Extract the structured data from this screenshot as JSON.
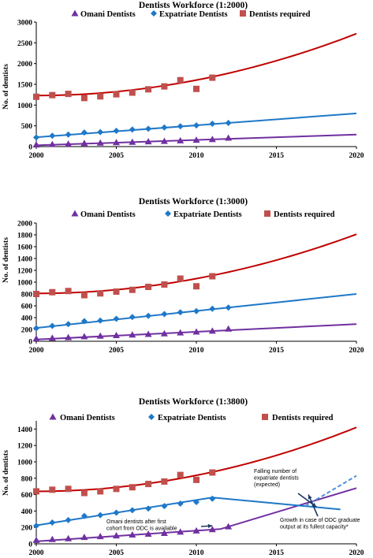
{
  "colors": {
    "omani": "#7030A0",
    "expatriate": "#1F78C8",
    "required": "#C0504D",
    "required_trend": "#C00000",
    "axis": "#000000"
  },
  "chart_data": [
    {
      "type": "scatter",
      "title": "Dentists Workforce (1:2000)",
      "ylabel": "No. of dentists",
      "xlim": [
        2000,
        2020
      ],
      "ylim": [
        0,
        3000
      ],
      "xticks": [
        2000,
        2005,
        2010,
        2015,
        2020
      ],
      "yticks": [
        0,
        500,
        1000,
        1500,
        2000,
        2500,
        3000
      ],
      "legend": {
        "position": "top"
      },
      "series": [
        {
          "name": "Omani Dentists",
          "marker": "triangle",
          "x": [
            2000,
            2001,
            2002,
            2003,
            2004,
            2005,
            2006,
            2007,
            2008,
            2009,
            2010,
            2011,
            2012
          ],
          "y": [
            45,
            55,
            65,
            80,
            90,
            100,
            110,
            120,
            130,
            145,
            160,
            175,
            210
          ],
          "trend": {
            "type": "linear",
            "x": [
              2000,
              2020
            ],
            "y": [
              30,
              290
            ]
          }
        },
        {
          "name": "Expatriate Dentists",
          "marker": "diamond",
          "x": [
            2000,
            2001,
            2002,
            2003,
            2004,
            2005,
            2006,
            2007,
            2008,
            2009,
            2010,
            2011,
            2012
          ],
          "y": [
            220,
            260,
            290,
            340,
            350,
            380,
            410,
            430,
            460,
            490,
            510,
            550,
            570
          ],
          "trend": {
            "type": "linear",
            "x": [
              2000,
              2020
            ],
            "y": [
              225,
              800
            ]
          }
        },
        {
          "name": "Dentists required",
          "marker": "square",
          "x": [
            2000,
            2001,
            2002,
            2003,
            2004,
            2005,
            2006,
            2007,
            2008,
            2009,
            2010,
            2011
          ],
          "y": [
            1200,
            1240,
            1270,
            1170,
            1210,
            1260,
            1300,
            1380,
            1450,
            1600,
            1390,
            1660
          ],
          "trend": {
            "type": "quadratic",
            "x": [
              2000,
              2020
            ],
            "y": [
              1230,
              2720
            ]
          }
        }
      ]
    },
    {
      "type": "scatter",
      "title": "Dentists Workforce (1:3000)",
      "ylabel": "No. of dentists",
      "xlim": [
        2000,
        2020
      ],
      "ylim": [
        0,
        2000
      ],
      "xticks": [
        2000,
        2005,
        2010,
        2015,
        2020
      ],
      "yticks": [
        0,
        200,
        400,
        600,
        800,
        1000,
        1200,
        1400,
        1600,
        1800,
        2000
      ],
      "legend": {
        "position": "top"
      },
      "series": [
        {
          "name": "Omani Dentists",
          "marker": "triangle",
          "x": [
            2000,
            2001,
            2002,
            2003,
            2004,
            2005,
            2006,
            2007,
            2008,
            2009,
            2010,
            2011,
            2012
          ],
          "y": [
            45,
            55,
            65,
            80,
            90,
            100,
            110,
            120,
            130,
            145,
            160,
            175,
            210
          ],
          "trend": {
            "type": "linear",
            "x": [
              2000,
              2020
            ],
            "y": [
              30,
              290
            ]
          }
        },
        {
          "name": "Expatriate Dentists",
          "marker": "diamond",
          "x": [
            2000,
            2001,
            2002,
            2003,
            2004,
            2005,
            2006,
            2007,
            2008,
            2009,
            2010,
            2011,
            2012
          ],
          "y": [
            220,
            260,
            290,
            340,
            350,
            380,
            410,
            430,
            460,
            490,
            510,
            550,
            570
          ],
          "trend": {
            "type": "linear",
            "x": [
              2000,
              2020
            ],
            "y": [
              225,
              800
            ]
          }
        },
        {
          "name": "Dentists required",
          "marker": "square",
          "x": [
            2000,
            2001,
            2002,
            2003,
            2004,
            2005,
            2006,
            2007,
            2008,
            2009,
            2010,
            2011
          ],
          "y": [
            800,
            830,
            850,
            780,
            810,
            840,
            870,
            920,
            960,
            1060,
            930,
            1100
          ],
          "trend": {
            "type": "quadratic",
            "x": [
              2000,
              2020
            ],
            "y": [
              810,
              1810
            ]
          }
        }
      ]
    },
    {
      "type": "scatter",
      "title": "Dentists Workforce (1:3800)",
      "ylabel": "No. of dentists",
      "xlim": [
        2000,
        2020
      ],
      "ylim": [
        0,
        1500
      ],
      "xticks": [
        2000,
        2005,
        2010,
        2015,
        2020
      ],
      "yticks": [
        0,
        200,
        400,
        600,
        800,
        1000,
        1200,
        1400
      ],
      "legend": {
        "position": "top"
      },
      "series": [
        {
          "name": "Omani Dentists",
          "marker": "triangle",
          "x": [
            2000,
            2001,
            2002,
            2003,
            2004,
            2005,
            2006,
            2007,
            2008,
            2009,
            2010,
            2011,
            2012
          ],
          "y": [
            45,
            55,
            65,
            80,
            90,
            100,
            110,
            120,
            130,
            145,
            160,
            175,
            210
          ],
          "trend": {
            "type": "linear",
            "x": [
              2000,
              2011.5
            ],
            "y": [
              30,
              180
            ]
          },
          "projection": {
            "x": [
              2011.5,
              2020
            ],
            "y": [
              180,
              680
            ]
          }
        },
        {
          "name": "Expatriate Dentists",
          "marker": "diamond",
          "x": [
            2000,
            2001,
            2002,
            2003,
            2004,
            2005,
            2006,
            2007,
            2008,
            2009,
            2010,
            2011
          ],
          "y": [
            220,
            260,
            290,
            340,
            350,
            380,
            410,
            430,
            460,
            490,
            510,
            550
          ],
          "trend": {
            "type": "linear",
            "x": [
              2000,
              2011
            ],
            "y": [
              225,
              565
            ]
          },
          "projection": {
            "x": [
              2011,
              2019
            ],
            "y": [
              565,
              420
            ]
          },
          "projection_dashed": {
            "x": [
              2016.8,
              2020
            ],
            "y": [
              460,
              830
            ]
          }
        },
        {
          "name": "Dentists required",
          "marker": "square",
          "x": [
            2000,
            2001,
            2002,
            2003,
            2004,
            2005,
            2006,
            2007,
            2008,
            2009,
            2010,
            2011
          ],
          "y": [
            640,
            660,
            670,
            620,
            640,
            670,
            690,
            730,
            760,
            840,
            780,
            870
          ],
          "trend": {
            "type": "quadratic",
            "x": [
              2000,
              2020
            ],
            "y": [
              640,
              1420
            ]
          }
        }
      ],
      "annotations": [
        {
          "lines": [
            "Falling number of",
            "expatriate dentists",
            "(expected)"
          ],
          "point_to": [
            2017.5,
            450
          ]
        },
        {
          "lines": [
            "Omani dentists after first",
            "cohort from ODC is available"
          ],
          "point_to": [
            2011,
            220
          ]
        },
        {
          "lines": [
            "Growth in case of  ODC graduate",
            "output at its fullest capacity*"
          ],
          "point_to": [
            2017,
            600
          ]
        }
      ]
    }
  ]
}
